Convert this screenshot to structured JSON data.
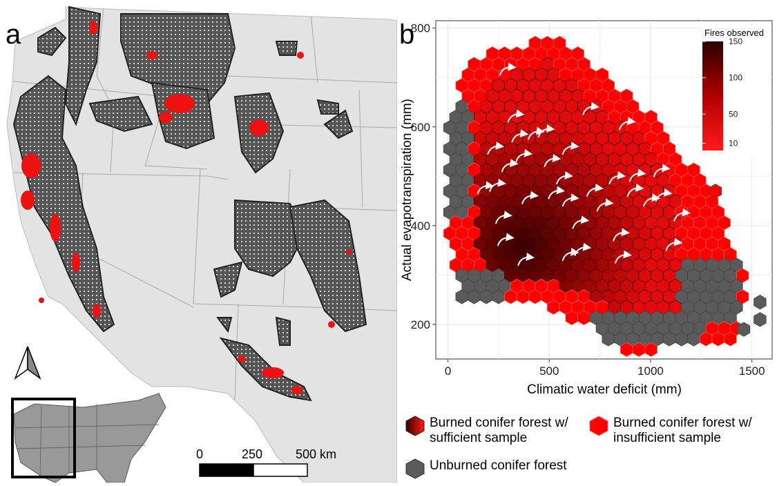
{
  "panel_a": {
    "letter": "a",
    "scale_labels": [
      "0",
      "250",
      "500 km"
    ]
  },
  "panel_b": {
    "letter": "b"
  },
  "legend": {
    "sufficient_line1": "Burned conifer forest w/",
    "sufficient_line2": "sufficient sample",
    "insufficient_line1": "Burned conifer forest w/",
    "insufficient_line2": "insufficient sample",
    "unburned": "Unburned conifer forest"
  },
  "colors": {
    "unburned": "#5a5a5a",
    "insufficient": "#ff0000",
    "sufficient_low": "#e00000",
    "sufficient_high": "#3a0000",
    "map_background": "#e3e3e3",
    "map_forest": "#555555"
  },
  "chart_data": {
    "type": "heatmap",
    "xlabel": "Climatic water deficit (mm)",
    "ylabel": "Actual evapotranspiration (mm)",
    "xlim": [
      -60,
      1600
    ],
    "ylim": [
      130,
      815
    ],
    "xticks": [
      0,
      500,
      1000,
      1500
    ],
    "yticks": [
      200,
      400,
      600,
      800
    ],
    "grid": true,
    "colorbar": {
      "title": "Fires observed",
      "ticks": [
        10,
        50,
        100,
        150
      ],
      "range": [
        0,
        150
      ],
      "placement": "top-right"
    },
    "hex_groups": {
      "unburned_regions": [
        {
          "x": [
            0,
            100
          ],
          "y": [
            420,
            650
          ]
        },
        {
          "x": [
            60,
            300
          ],
          "y": [
            250,
            310
          ]
        },
        {
          "x": [
            700,
            1250
          ],
          "y": [
            150,
            215
          ]
        },
        {
          "x": [
            1150,
            1450
          ],
          "y": [
            210,
            340
          ]
        }
      ],
      "outlier_hexes": [
        [
          1540,
          245
        ],
        [
          1540,
          210
        ],
        [
          1460,
          190
        ],
        [
          1320,
          470
        ]
      ],
      "fire_density_peak": {
        "x": 370,
        "y": 360,
        "max_count": 150
      }
    },
    "arrows_note": ""
  }
}
